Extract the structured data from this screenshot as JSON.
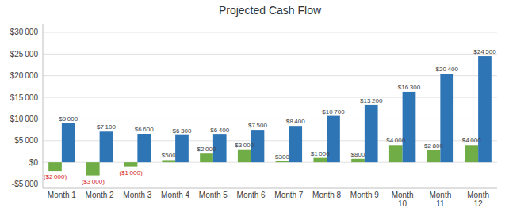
{
  "chart_data": {
    "type": "bar",
    "title": "Projected Cash Flow",
    "categories": [
      "Month 1",
      "Month 2",
      "Month 3",
      "Month 4",
      "Month 5",
      "Month 6",
      "Month 7",
      "Month 8",
      "Month 9",
      "Month\n10",
      "Month\n11",
      "Month\n12"
    ],
    "series": [
      {
        "color": "#70ad47",
        "values": [
          -2000,
          -3000,
          -1000,
          500,
          2000,
          3000,
          300,
          1000,
          800,
          4000,
          2800,
          4000
        ],
        "value_labels": [
          "($2 000)",
          "($3 000)",
          "($1 000)",
          "$500",
          "$2 000",
          "$3 000",
          "$300",
          "$1 000",
          "$800",
          "$4 000",
          "$2 800",
          "$4 000"
        ]
      },
      {
        "color": "#2e75b6",
        "values": [
          9000,
          7100,
          6600,
          6300,
          6400,
          7500,
          8400,
          10700,
          13200,
          16300,
          20400,
          24500
        ],
        "value_labels": [
          "$9 000",
          "$7 100",
          "$6 600",
          "$6 300",
          "$6 400",
          "$7 500",
          "$8 400",
          "$10 700",
          "$13 200",
          "$16 300",
          "$20 400",
          "$24 500"
        ]
      }
    ],
    "ylim": [
      -6000,
      32000
    ],
    "yticks": [
      {
        "value": -5000,
        "label": "-$5 000"
      },
      {
        "value": 0,
        "label": "$0"
      },
      {
        "value": 5000,
        "label": "$5 000"
      },
      {
        "value": 10000,
        "label": "$10 000"
      },
      {
        "value": 15000,
        "label": "$15 000"
      },
      {
        "value": 20000,
        "label": "$20 000"
      },
      {
        "value": 25000,
        "label": "$25 000"
      },
      {
        "value": 30000,
        "label": "$30 000"
      }
    ],
    "grid": true,
    "data_labels": true
  }
}
